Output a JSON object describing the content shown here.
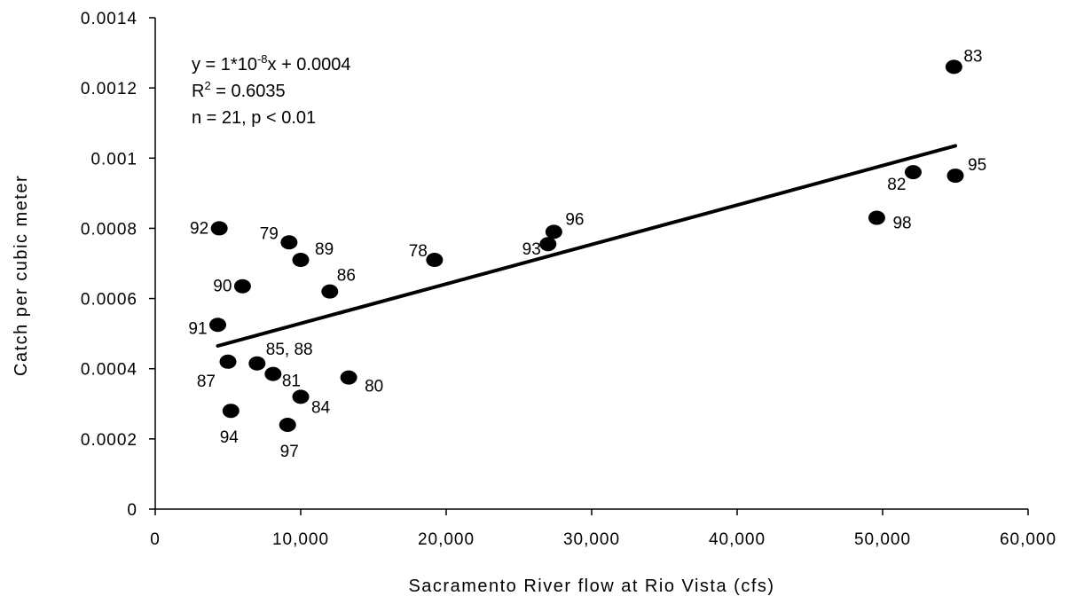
{
  "chart_data": {
    "type": "scatter",
    "title": "",
    "xlabel": "Sacramento River flow  at Rio Vista (cfs)",
    "ylabel": "Catch per cubic meter",
    "xlim": [
      0,
      60000
    ],
    "ylim": [
      0,
      0.0014
    ],
    "x_ticks": [
      0,
      10000,
      20000,
      30000,
      40000,
      50000,
      60000
    ],
    "x_tick_labels": [
      "0",
      "10,000",
      "20,000",
      "30,000",
      "40,000",
      "50,000",
      "60,000"
    ],
    "y_ticks": [
      0,
      0.0002,
      0.0004,
      0.0006,
      0.0008,
      0.001,
      0.0012,
      0.0014
    ],
    "y_tick_labels": [
      "0",
      "0.0002",
      "0.0004",
      "0.0006",
      "0.0008",
      "0.001",
      "0.0012",
      "0.0014"
    ],
    "grid": false,
    "legend": "none",
    "marker_color": "#000000",
    "points": [
      {
        "label": "83",
        "x": 54900,
        "y": 0.00126
      },
      {
        "label": "82",
        "x": 52100,
        "y": 0.00096
      },
      {
        "label": "95",
        "x": 55000,
        "y": 0.00095
      },
      {
        "label": "98",
        "x": 49600,
        "y": 0.00083
      },
      {
        "label": "96",
        "x": 27400,
        "y": 0.00079
      },
      {
        "label": "93",
        "x": 27000,
        "y": 0.000755
      },
      {
        "label": "78",
        "x": 19200,
        "y": 0.00071
      },
      {
        "label": "92",
        "x": 4400,
        "y": 0.0008
      },
      {
        "label": "79",
        "x": 9200,
        "y": 0.00076
      },
      {
        "label": "89",
        "x": 10000,
        "y": 0.00071
      },
      {
        "label": "86",
        "x": 12000,
        "y": 0.00062
      },
      {
        "label": "90",
        "x": 6000,
        "y": 0.000635
      },
      {
        "label": "91",
        "x": 4300,
        "y": 0.000525
      },
      {
        "label": "87",
        "x": 5000,
        "y": 0.00042
      },
      {
        "label": "85, 88",
        "x": 7000,
        "y": 0.000415
      },
      {
        "label": "81",
        "x": 8100,
        "y": 0.000385
      },
      {
        "label": "80",
        "x": 13300,
        "y": 0.000375
      },
      {
        "label": "84",
        "x": 10000,
        "y": 0.00032
      },
      {
        "label": "94",
        "x": 5200,
        "y": 0.00028
      },
      {
        "label": "97",
        "x": 9100,
        "y": 0.00024
      }
    ],
    "trendline": {
      "x": [
        4300,
        55000
      ],
      "y": [
        0.000465,
        0.001035
      ]
    },
    "annotation": {
      "equation_prefix": "y = 1*10",
      "equation_exponent": "-8",
      "equation_suffix": "x + 0.0004",
      "r2_prefix": "R",
      "r2_exponent": "2",
      "r2_suffix": " = 0.6035",
      "stats": "n = 21, p < 0.01"
    }
  }
}
